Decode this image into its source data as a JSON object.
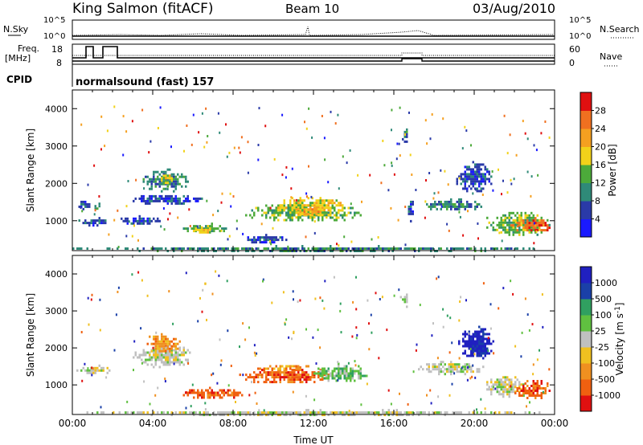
{
  "header": {
    "station": "King Salmon (fitACF)",
    "beam": "Beam 10",
    "date": "03/Aug/2010"
  },
  "top_panels": {
    "nsky_label": "N.Sky",
    "nsky_ticks": [
      "10^5",
      "10^0"
    ],
    "nsearch_label": "N.Search",
    "nsearch_ticks": [
      "10^5",
      "10^0"
    ],
    "freq_label_1": "Freq.",
    "freq_label_2": "[MHz]",
    "freq_ticks": [
      "18",
      "8"
    ],
    "nave_label": "Nave",
    "nave_ticks": [
      "60",
      "0"
    ],
    "cpid_label": "CPID",
    "cpid_text": "normalsound (fast) 157"
  },
  "chart_data": [
    {
      "type": "heatmap",
      "name": "power-panel",
      "ylabel": "Slant Range [km]",
      "yticks": [
        "1000",
        "2000",
        "3000",
        "4000"
      ],
      "ylim": [
        200,
        4500
      ],
      "xlim": [
        0,
        24
      ],
      "colorbar": {
        "label": "Power [dB]",
        "ticks": [
          "4",
          "8",
          "12",
          "16",
          "20",
          "24",
          "28"
        ],
        "colors": [
          "#1a1aff",
          "#2a3aa8",
          "#2f8a78",
          "#4caa3a",
          "#f2d21a",
          "#f5a020",
          "#f07020",
          "#e01010"
        ]
      },
      "regions": [
        {
          "t0": 0.1,
          "t1": 0.9,
          "r0": 1300,
          "r1": 1600,
          "c": 1
        },
        {
          "t0": 0.1,
          "t1": 2.0,
          "r0": 900,
          "r1": 1100,
          "c": 1
        },
        {
          "t0": 1.0,
          "t1": 1.4,
          "r0": 1300,
          "r1": 1550,
          "c": 2
        },
        {
          "t0": 2.8,
          "t1": 6.5,
          "r0": 1450,
          "r1": 1750,
          "c": 1
        },
        {
          "t0": 3.3,
          "t1": 5.8,
          "r0": 1800,
          "r1": 2400,
          "c": 2
        },
        {
          "t0": 4.3,
          "t1": 5.0,
          "r0": 2000,
          "r1": 2300,
          "c": 4
        },
        {
          "t0": 2.3,
          "t1": 4.5,
          "r0": 900,
          "r1": 1150,
          "c": 1
        },
        {
          "t0": 5.3,
          "t1": 8.0,
          "r0": 700,
          "r1": 950,
          "c": 3
        },
        {
          "t0": 6.0,
          "t1": 7.0,
          "r0": 650,
          "r1": 850,
          "c": 4
        },
        {
          "t0": 8.3,
          "t1": 14.8,
          "r0": 1000,
          "r1": 1500,
          "c": 3
        },
        {
          "t0": 10.0,
          "t1": 13.8,
          "r0": 1100,
          "r1": 1700,
          "c": 4
        },
        {
          "t0": 11.0,
          "t1": 12.5,
          "r0": 1150,
          "r1": 1400,
          "c": 5
        },
        {
          "t0": 8.5,
          "t1": 11.0,
          "r0": 400,
          "r1": 650,
          "c": 1
        },
        {
          "t0": 16.3,
          "t1": 16.7,
          "r0": 3100,
          "r1": 3600,
          "c": 2
        },
        {
          "t0": 16.6,
          "t1": 17.0,
          "r0": 1000,
          "r1": 1600,
          "c": 1
        },
        {
          "t0": 17.2,
          "t1": 20.5,
          "r0": 1300,
          "r1": 1600,
          "c": 2
        },
        {
          "t0": 19.0,
          "t1": 21.0,
          "r0": 1800,
          "r1": 2600,
          "c": 1
        },
        {
          "t0": 20.5,
          "t1": 23.9,
          "r0": 600,
          "r1": 1300,
          "c": 3
        },
        {
          "t0": 21.8,
          "t1": 23.9,
          "r0": 700,
          "r1": 1100,
          "c": 6
        },
        {
          "t0": 0.0,
          "t1": 24.0,
          "r0": 200,
          "r1": 350,
          "c": 2
        }
      ]
    },
    {
      "type": "heatmap",
      "name": "velocity-panel",
      "ylabel": "Slant Range [km]",
      "yticks": [
        "1000",
        "2000",
        "3000",
        "4000"
      ],
      "ylim": [
        200,
        4500
      ],
      "xlim": [
        0,
        24
      ],
      "xlabel": "Time UT",
      "xticks": [
        "00:00",
        "04:00",
        "08:00",
        "12:00",
        "16:00",
        "20:00",
        "00:00"
      ],
      "colorbar": {
        "label": "Velocity [m s^-1]",
        "ticks": [
          "1000",
          "500",
          "100",
          "25",
          "-25",
          "-100",
          "-500",
          "-1000"
        ],
        "colors": [
          "#2020c0",
          "#1a40a8",
          "#30a060",
          "#60c040",
          "#c0c0c0",
          "#f0c020",
          "#f09020",
          "#f06010",
          "#e01010"
        ]
      },
      "regions": [
        {
          "t0": 0.1,
          "t1": 2.0,
          "r0": 1300,
          "r1": 1550,
          "c": 4
        },
        {
          "t0": 3.0,
          "t1": 6.0,
          "r0": 1500,
          "r1": 2100,
          "c": 4
        },
        {
          "t0": 3.5,
          "t1": 5.5,
          "r0": 1900,
          "r1": 2400,
          "c": 6
        },
        {
          "t0": 5.3,
          "t1": 8.5,
          "r0": 650,
          "r1": 950,
          "c": 7
        },
        {
          "t0": 8.3,
          "t1": 13.0,
          "r0": 1050,
          "r1": 1500,
          "c": 7
        },
        {
          "t0": 12.0,
          "t1": 14.8,
          "r0": 1100,
          "r1": 1600,
          "c": 3
        },
        {
          "t0": 9.0,
          "t1": 12.0,
          "r0": 1400,
          "r1": 1600,
          "c": 6
        },
        {
          "t0": 16.3,
          "t1": 16.7,
          "r0": 3100,
          "r1": 3600,
          "c": 4
        },
        {
          "t0": 17.0,
          "t1": 20.5,
          "r0": 1300,
          "r1": 1650,
          "c": 4
        },
        {
          "t0": 19.2,
          "t1": 21.0,
          "r0": 1700,
          "r1": 2600,
          "c": 0
        },
        {
          "t0": 20.5,
          "t1": 22.5,
          "r0": 700,
          "r1": 1300,
          "c": 4
        },
        {
          "t0": 22.0,
          "t1": 23.9,
          "r0": 600,
          "r1": 1200,
          "c": 7
        },
        {
          "t0": 0.0,
          "t1": 24.0,
          "r0": 200,
          "r1": 350,
          "c": 4
        }
      ]
    }
  ]
}
